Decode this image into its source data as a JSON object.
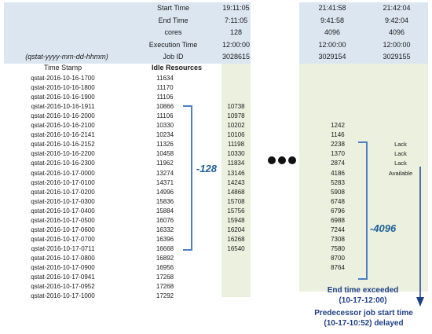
{
  "colors": {
    "header_bg": "#dce6f1",
    "col_bg": "#ebf1de",
    "row_alt": "#ffffff",
    "accent": "#4f7fc0",
    "note_text": "#1f3f86"
  },
  "meta_labels": [
    "Start Time",
    "End Time",
    "cores",
    "Execution Time",
    "Job ID"
  ],
  "format_hint": "(qstat-yyyy-mm-dd-hhmm)",
  "col_headers": {
    "timestamp": "Time Stamp",
    "idle": "Idle Resources"
  },
  "job1": {
    "start": "19:11:05",
    "end": "7:11:05",
    "cores": "128",
    "exec": "12:00:00",
    "id": "3028615"
  },
  "job2": {
    "start": "21:41:58",
    "end": "9:41:58",
    "cores": "4096",
    "exec": "12:00:00",
    "id": "3029154"
  },
  "job3": {
    "start": "21:42:04",
    "end": "9:42:04",
    "cores": "4096",
    "exec": "12:00:00",
    "id": "3029155"
  },
  "rows": [
    {
      "ts": "qstat-2016-10-16-1700",
      "idle": "11634",
      "j1": "",
      "j2": "",
      "j3": ""
    },
    {
      "ts": "qstat-2016-10-16-1800",
      "idle": "11170",
      "j1": "",
      "j2": "",
      "j3": ""
    },
    {
      "ts": "qstat-2016-10-16-1900",
      "idle": "11106",
      "j1": "",
      "j2": "",
      "j3": ""
    },
    {
      "ts": "qstat-2016-10-16-1911",
      "idle": "10866",
      "j1": "10738",
      "j2": "",
      "j3": ""
    },
    {
      "ts": "qstat-2016-10-16-2000",
      "idle": "11106",
      "j1": "10978",
      "j2": "",
      "j3": ""
    },
    {
      "ts": "qstat-2016-10-16-2100",
      "idle": "10330",
      "j1": "10202",
      "j2": "1242",
      "j3": ""
    },
    {
      "ts": "qstat-2016-10-16-2141",
      "idle": "10234",
      "j1": "10106",
      "j2": "1146",
      "j3": ""
    },
    {
      "ts": "qstat-2016-10-16-2152",
      "idle": "11326",
      "j1": "11198",
      "j2": "2238",
      "j3": "Lack"
    },
    {
      "ts": "qstat-2016-10-16-2200",
      "idle": "10458",
      "j1": "10330",
      "j2": "1370",
      "j3": "Lack"
    },
    {
      "ts": "qstat-2016-10-16-2300",
      "idle": "11962",
      "j1": "11834",
      "j2": "2874",
      "j3": "Lack"
    },
    {
      "ts": "qstat-2016-10-17-0000",
      "idle": "13274",
      "j1": "13146",
      "j2": "4186",
      "j3": "Available"
    },
    {
      "ts": "qstat-2016-10-17-0100",
      "idle": "14371",
      "j1": "14243",
      "j2": "5283",
      "j3": ""
    },
    {
      "ts": "qstat-2016-10-17-0200",
      "idle": "14996",
      "j1": "14868",
      "j2": "5908",
      "j3": ""
    },
    {
      "ts": "qstat-2016-10-17-0300",
      "idle": "15836",
      "j1": "15708",
      "j2": "6748",
      "j3": ""
    },
    {
      "ts": "qstat-2016-10-17-0400",
      "idle": "15884",
      "j1": "15756",
      "j2": "6796",
      "j3": ""
    },
    {
      "ts": "qstat-2016-10-17-0500",
      "idle": "16076",
      "j1": "15948",
      "j2": "6988",
      "j3": ""
    },
    {
      "ts": "qstat-2016-10-17-0600",
      "idle": "16332",
      "j1": "16204",
      "j2": "7244",
      "j3": ""
    },
    {
      "ts": "qstat-2016-10-17-0700",
      "idle": "16396",
      "j1": "16268",
      "j2": "7308",
      "j3": ""
    },
    {
      "ts": "qstat-2016-10-17-0711",
      "idle": "16668",
      "j1": "16540",
      "j2": "7580",
      "j3": ""
    },
    {
      "ts": "qstat-2016-10-17-0800",
      "idle": "16892",
      "j1": "",
      "j2": "8700",
      "j3": ""
    },
    {
      "ts": "qstat-2016-10-17-0900",
      "idle": "16956",
      "j1": "",
      "j2": "8764",
      "j3": ""
    },
    {
      "ts": "qstat-2016-10-17-0941",
      "idle": "17268",
      "j1": "",
      "j2": "",
      "j3": ""
    },
    {
      "ts": "qstat-2016-10-17-0952",
      "idle": "17268",
      "j1": "",
      "j2": "",
      "j3": ""
    },
    {
      "ts": "qstat-2016-10-17-1000",
      "idle": "17292",
      "j1": "",
      "j2": "",
      "j3": ""
    }
  ],
  "annotations": {
    "minus128": "-128",
    "minus4096": "-4096",
    "end_exceeded_1": "End time exceeded",
    "end_exceeded_2": "(10-17-12:00)",
    "pred_1": "Predecessor job start time",
    "pred_2": "(10-17-10:52) delayed"
  }
}
